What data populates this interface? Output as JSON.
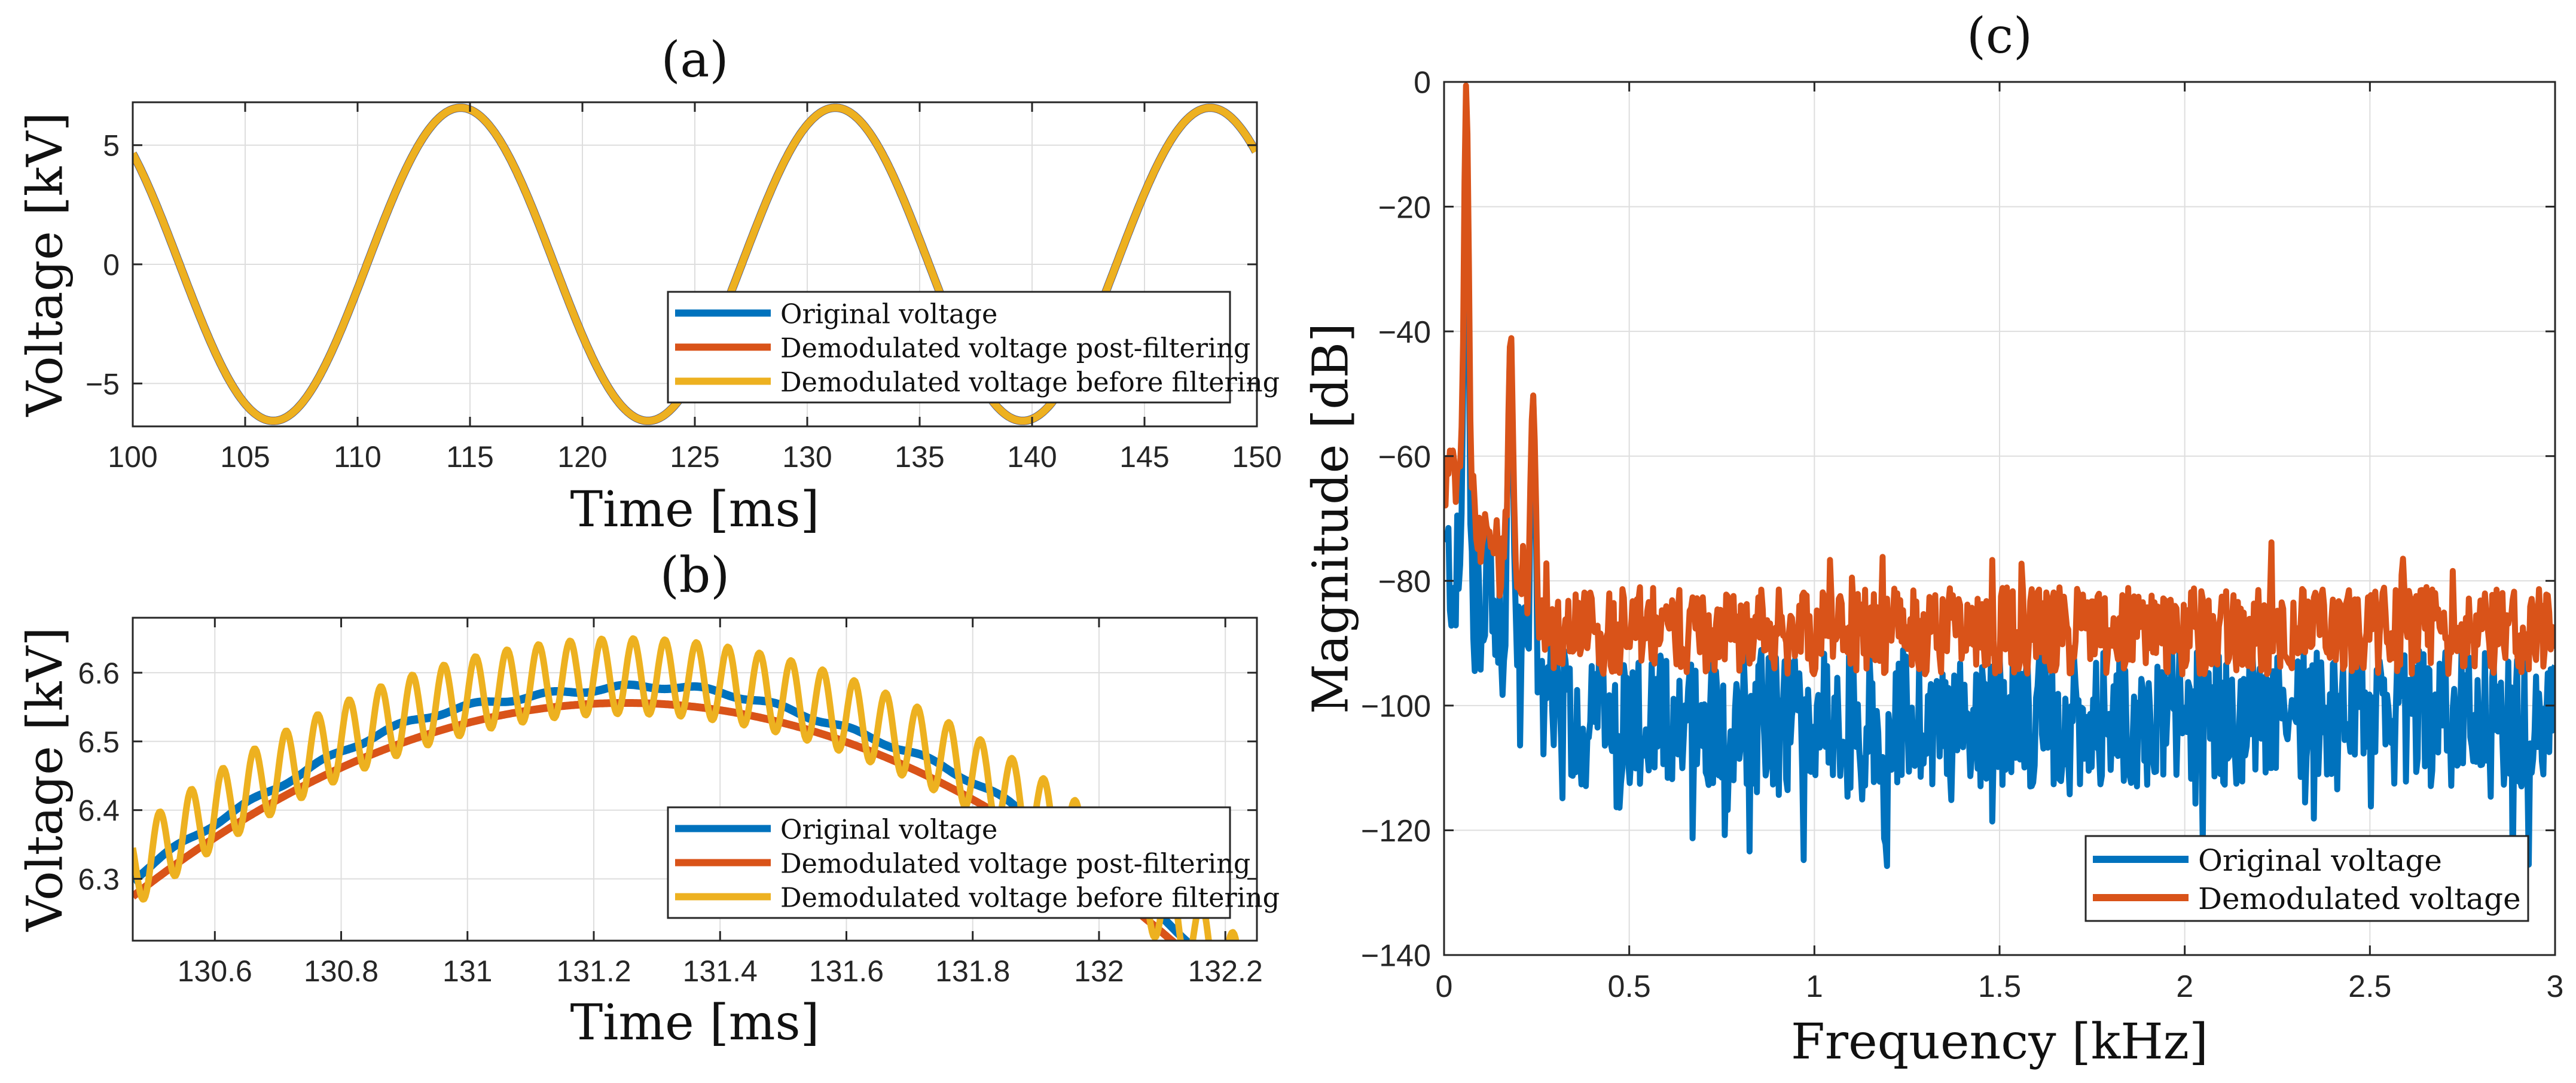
{
  "chart_data": [
    {
      "type": "line",
      "title": "(a)",
      "xlabel": "Time [ms]",
      "ylabel": "Voltage [kV]",
      "xlim": [
        100,
        150
      ],
      "ylim": [
        -6.8,
        6.8
      ],
      "xticks": [
        100,
        105,
        110,
        115,
        120,
        125,
        130,
        135,
        140,
        145,
        150
      ],
      "yticks": [
        -5,
        0,
        5
      ],
      "xtick_labels": [
        "100",
        "105",
        "110",
        "115",
        "120",
        "125",
        "130",
        "135",
        "140",
        "145",
        "150"
      ],
      "ytick_labels": [
        "−5",
        "0",
        "5"
      ],
      "grid": true,
      "legend_position": "lower-right",
      "signal": {
        "amplitude_kv": 6.57,
        "frequency_hz": 60,
        "peak_time_ms": 131.25
      },
      "series": [
        {
          "name": "Original voltage",
          "color": "#0072BD"
        },
        {
          "name": "Demodulated voltage post-filtering",
          "color": "#D95319"
        },
        {
          "name": "Demodulated voltage before filtering",
          "color": "#EDB120"
        }
      ]
    },
    {
      "type": "line",
      "title": "(b)",
      "xlabel": "Time [ms]",
      "ylabel": "Voltage [kV]",
      "xlim": [
        130.47,
        132.25
      ],
      "ylim": [
        6.21,
        6.68
      ],
      "xticks": [
        130.6,
        130.8,
        131,
        131.2,
        131.4,
        131.6,
        131.8,
        132,
        132.2
      ],
      "yticks": [
        6.3,
        6.4,
        6.5,
        6.6
      ],
      "xtick_labels": [
        "130.6",
        "130.8",
        "131",
        "131.2",
        "131.4",
        "131.6",
        "131.8",
        "132",
        "132.2"
      ],
      "ytick_labels": [
        "6.3",
        "6.4",
        "6.5",
        "6.6"
      ],
      "grid": true,
      "legend_position": "lower-right",
      "signal": {
        "amplitude_kv": 6.575,
        "filtered_amplitude_kv": 6.562,
        "frequency_hz": 60,
        "peak_time_ms": 131.25,
        "ripple_frequency_khz": 20,
        "ripple_amplitude_kv": 0.055
      },
      "series": [
        {
          "name": "Original voltage",
          "color": "#0072BD"
        },
        {
          "name": "Demodulated voltage post-filtering",
          "color": "#D95319"
        },
        {
          "name": "Demodulated voltage before filtering",
          "color": "#EDB120"
        }
      ]
    },
    {
      "type": "line",
      "title": "(c)",
      "xlabel": "Frequency [kHz]",
      "ylabel": "Magnitude [dB]",
      "xlim": [
        0,
        3
      ],
      "ylim": [
        -140,
        0
      ],
      "xticks": [
        0,
        0.5,
        1,
        1.5,
        2,
        2.5,
        3
      ],
      "yticks": [
        -140,
        -120,
        -100,
        -80,
        -60,
        -40,
        -20,
        0
      ],
      "xtick_labels": [
        "0",
        "0.5",
        "1",
        "1.5",
        "2",
        "2.5",
        "3"
      ],
      "ytick_labels": [
        "−140",
        "−120",
        "−100",
        "−80",
        "−60",
        "−40",
        "−20",
        "0"
      ],
      "grid": true,
      "legend_position": "lower-right",
      "harmonic_peaks_db": [
        {
          "f_khz": 0.06,
          "original": -9,
          "demodulated": 0
        },
        {
          "f_khz": 0.12,
          "original": -72,
          "demodulated": -72
        },
        {
          "f_khz": 0.18,
          "original": -40,
          "demodulated": -40
        },
        {
          "f_khz": 0.24,
          "original": -50,
          "demodulated": -50
        }
      ],
      "noise_floor_db": {
        "original_mean": -102,
        "demodulated_mean": -88
      },
      "series": [
        {
          "name": "Original voltage",
          "color": "#0072BD"
        },
        {
          "name": "Demodulated voltage",
          "color": "#D95319"
        }
      ]
    }
  ]
}
